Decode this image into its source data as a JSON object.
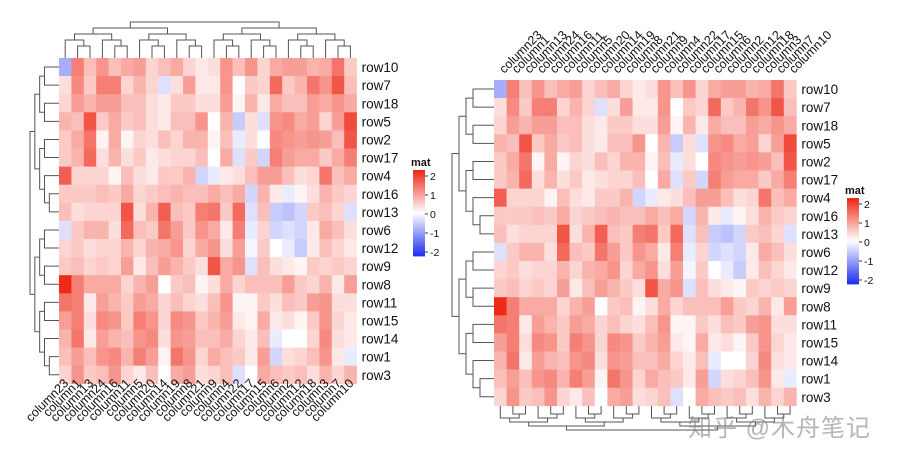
{
  "chart_data": {
    "type": "heatmap",
    "palette": {
      "low": "#2332f0",
      "mid": "#ffffff",
      "high": "#ee2a18",
      "range": [
        -2,
        2
      ]
    },
    "legend": {
      "title": "mat",
      "ticks": [
        "2",
        "1",
        "0",
        "-1",
        "-2"
      ]
    },
    "matrix": {
      "rows": [
        "row1",
        "row2",
        "row3",
        "row4",
        "row5",
        "row6",
        "row7",
        "row8",
        "row9",
        "row10",
        "row11",
        "row12",
        "row13",
        "row14",
        "row15",
        "row16",
        "row17",
        "row18"
      ],
      "columns": [
        "column1",
        "column2",
        "column3",
        "column4",
        "column5",
        "column6",
        "column7",
        "column8",
        "column9",
        "column10",
        "column11",
        "column12",
        "column13",
        "column14",
        "column15",
        "column16",
        "column17",
        "column18",
        "column19",
        "column20",
        "column21",
        "column22",
        "column23",
        "column24"
      ],
      "values": [
        [
          0.9,
          0.3,
          1.0,
          0.6,
          1.2,
          -0.4,
          0.2,
          1.0,
          0.8,
          -0.2,
          0.7,
          0.4,
          0.6,
          0.1,
          0.9,
          1.1,
          0.2,
          0.6,
          1.3,
          0.9,
          0.4,
          0.5,
          0.6,
          1.0
        ],
        [
          0.8,
          1.0,
          0.9,
          0.6,
          0.4,
          1.1,
          0.6,
          0.7,
          0.1,
          1.6,
          0.1,
          0.9,
          1.3,
          0.6,
          0.0,
          0.8,
          0.3,
          1.0,
          0.4,
          0.3,
          0.7,
          -0.2,
          0.5,
          0.1
        ],
        [
          1.0,
          0.5,
          0.7,
          0.6,
          0.2,
          0.6,
          0.4,
          0.9,
          0.4,
          0.7,
          0.4,
          0.6,
          0.5,
          0.0,
          0.8,
          1.0,
          0.0,
          0.3,
          0.8,
          0.6,
          0.3,
          -0.3,
          0.4,
          0.6
        ],
        [
          0.4,
          0.6,
          1.3,
          0.2,
          0.3,
          0.9,
          0.6,
          0.7,
          -0.2,
          0.8,
          0.6,
          0.3,
          0.4,
          0.5,
          0.9,
          0.1,
          0.6,
          0.4,
          0.5,
          0.2,
          -0.4,
          0.3,
          1.5,
          0.4
        ],
        [
          0.6,
          1.1,
          0.4,
          0.7,
          0.6,
          1.0,
          0.9,
          0.6,
          0.0,
          1.7,
          0.5,
          0.8,
          1.6,
          0.2,
          -0.3,
          0.8,
          0.3,
          0.9,
          0.6,
          0.3,
          1.0,
          -0.5,
          0.7,
          0.5
        ],
        [
          0.5,
          -0.3,
          0.8,
          0.2,
          0.6,
          -0.4,
          0.6,
          0.5,
          0.8,
          0.3,
          1.4,
          -0.4,
          0.7,
          1.3,
          0.4,
          0.3,
          -0.2,
          0.2,
          0.9,
          0.5,
          1.0,
          1.2,
          -0.3,
          0.7
        ],
        [
          1.1,
          0.5,
          1.0,
          1.0,
          0.7,
          1.4,
          1.6,
          0.9,
          0.2,
          0.6,
          0.4,
          0.7,
          0.5,
          -0.3,
          0.4,
          1.2,
          0.5,
          1.3,
          0.3,
          0.4,
          0.2,
          0.0,
          0.3,
          1.2
        ],
        [
          1.2,
          0.9,
          0.7,
          0.8,
          0.7,
          0.6,
          0.2,
          0.6,
          0.3,
          0.9,
          0.4,
          0.5,
          0.8,
          0.0,
          0.6,
          0.8,
          0.6,
          0.4,
          0.5,
          0.9,
          0.1,
          0.4,
          2.0,
          0.8
        ],
        [
          0.6,
          0.2,
          0.4,
          0.8,
          0.2,
          0.3,
          0.5,
          0.5,
          1.6,
          0.4,
          0.9,
          0.1,
          0.4,
          0.9,
          0.6,
          0.4,
          -0.3,
          0.5,
          0.7,
          0.6,
          0.3,
          1.0,
          0.5,
          0.5
        ],
        [
          1.2,
          0.9,
          0.8,
          1.0,
          0.9,
          0.8,
          1.3,
          0.4,
          0.3,
          0.5,
          0.8,
          0.9,
          0.6,
          0.6,
          0.4,
          0.6,
          1.0,
          0.7,
          0.8,
          0.4,
          0.2,
          0.6,
          -0.8,
          1.0
        ],
        [
          1.2,
          0.6,
          1.0,
          1.0,
          0.9,
          0.3,
          0.3,
          0.4,
          0.6,
          0.3,
          0.5,
          0.5,
          0.2,
          0.4,
          0.5,
          0.7,
          0.1,
          0.9,
          0.6,
          0.8,
          0.3,
          0.1,
          1.3,
          0.9
        ],
        [
          0.5,
          -0.2,
          0.6,
          0.3,
          0.4,
          0.0,
          0.4,
          0.4,
          1.0,
          0.2,
          0.7,
          -0.5,
          0.3,
          0.8,
          0.5,
          0.4,
          -0.1,
          0.2,
          1.0,
          0.7,
          0.8,
          0.9,
          0.4,
          0.4
        ],
        [
          0.3,
          -0.6,
          0.6,
          0.5,
          0.3,
          -0.5,
          0.4,
          0.5,
          1.3,
          -0.3,
          1.6,
          -0.4,
          0.4,
          1.5,
          0.6,
          0.4,
          -0.3,
          0.5,
          0.6,
          0.7,
          1.2,
          1.4,
          0.6,
          0.4
        ],
        [
          1.3,
          0.0,
          1.1,
          0.8,
          1.0,
          -0.2,
          0.3,
          0.9,
          0.6,
          0.2,
          0.6,
          0.0,
          0.2,
          0.3,
          0.6,
          0.7,
          0.2,
          0.4,
          1.0,
          1.1,
          0.6,
          0.4,
          0.7,
          0.9
        ],
        [
          1.2,
          0.3,
          1.0,
          0.9,
          1.2,
          0.2,
          0.4,
          1.0,
          0.7,
          0.2,
          0.5,
          0.1,
          0.3,
          0.4,
          0.8,
          1.0,
          0.1,
          0.5,
          1.1,
          1.0,
          0.5,
          0.2,
          0.9,
          1.1
        ],
        [
          0.5,
          -0.2,
          0.7,
          0.6,
          0.4,
          0.2,
          0.5,
          0.6,
          0.8,
          0.4,
          0.8,
          0.1,
          0.5,
          0.6,
          0.7,
          0.5,
          -0.4,
          0.3,
          0.7,
          0.5,
          0.6,
          0.8,
          0.5,
          0.6
        ],
        [
          0.7,
          0.9,
          0.5,
          0.8,
          0.5,
          1.2,
          0.8,
          0.4,
          0.0,
          1.2,
          0.3,
          0.8,
          1.4,
          0.3,
          -0.4,
          0.7,
          0.5,
          0.8,
          0.4,
          0.2,
          0.6,
          -0.3,
          0.5,
          0.3
        ],
        [
          0.9,
          0.6,
          0.8,
          0.9,
          0.6,
          0.8,
          1.0,
          0.5,
          0.3,
          0.8,
          0.6,
          0.6,
          0.7,
          0.2,
          0.2,
          0.9,
          0.7,
          0.9,
          0.5,
          0.3,
          0.3,
          0.1,
          0.4,
          0.9
        ]
      ]
    },
    "heatmaps": [
      {
        "name": "clustered-left",
        "row_order": [
          "row10",
          "row7",
          "row18",
          "row5",
          "row2",
          "row17",
          "row4",
          "row16",
          "row13",
          "row6",
          "row12",
          "row9",
          "row8",
          "row11",
          "row15",
          "row14",
          "row1",
          "row3"
        ],
        "column_order": [
          "column23",
          "column1",
          "column13",
          "column24",
          "column16",
          "column11",
          "column5",
          "column20",
          "column14",
          "column19",
          "column8",
          "column21",
          "column9",
          "column4",
          "column22",
          "column17",
          "column15",
          "column6",
          "column2",
          "column12",
          "column18",
          "column3",
          "column7",
          "column10"
        ],
        "row_dendrogram_side": "left",
        "column_dendrogram_side": "top",
        "column_labels_side": "bottom"
      },
      {
        "name": "clustered-right",
        "row_order": [
          "row10",
          "row7",
          "row18",
          "row5",
          "row2",
          "row17",
          "row4",
          "row16",
          "row13",
          "row6",
          "row12",
          "row9",
          "row8",
          "row11",
          "row15",
          "row14",
          "row1",
          "row3"
        ],
        "column_order": [
          "column23",
          "column1",
          "column13",
          "column24",
          "column16",
          "column11",
          "column5",
          "column20",
          "column14",
          "column19",
          "column8",
          "column21",
          "column9",
          "column4",
          "column22",
          "column17",
          "column15",
          "column6",
          "column2",
          "column12",
          "column18",
          "column3",
          "column7",
          "column10"
        ],
        "row_dendrogram_side": "left",
        "column_dendrogram_side": "bottom",
        "column_labels_side": "top"
      }
    ]
  },
  "watermark": "知乎 @木舟笔记"
}
